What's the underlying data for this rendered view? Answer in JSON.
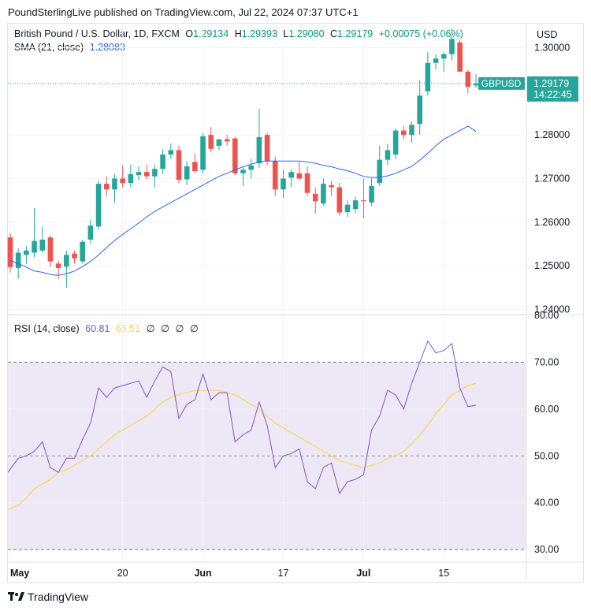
{
  "header": {
    "title": "PoundSterlingLive published on TradingView.com, Jul 22, 2024 07:37 UTC+1"
  },
  "legend": {
    "instrument": "British Pound / U.S. Dollar, 1D, FXCM",
    "o_label": "O",
    "o_val": "1.29134",
    "h_label": "H",
    "h_val": "1.29393",
    "l_label": "L",
    "l_val": "1.29080",
    "c_label": "C",
    "c_val": "1.29179",
    "change": "+0.00075 (+0.06%)",
    "sma_label": "SMA (21, close)",
    "sma_val": "1.28083",
    "rsi_label": "RSI (14, close)",
    "rsi_val": "60.81",
    "rsi_ma_val": "65.51",
    "na_symbols": [
      "∅",
      "∅",
      "∅",
      "∅"
    ]
  },
  "currency_button": "USD",
  "price_tag": {
    "symbol": "GBPUSD",
    "price": "1.29179",
    "countdown": "14:22:45"
  },
  "footer": {
    "brand": "TradingView"
  },
  "colors": {
    "up": "#26a69a",
    "down": "#ef5350",
    "sma": "#2962ff",
    "rsi": "#7e57c2",
    "rsi_ma": "#fdd835",
    "rsi_band": "#ede7f6"
  },
  "chart_data": [
    {
      "type": "candlestick",
      "title": "British Pound / U.S. Dollar, 1D, FXCM",
      "ylim": [
        1.239,
        1.3055
      ],
      "yticks": [
        1.24,
        1.25,
        1.26,
        1.27,
        1.28,
        1.3
      ],
      "ytick_labels": [
        "1.24000",
        "1.25000",
        "1.26000",
        "1.27000",
        "1.28000",
        "1.30000"
      ],
      "x_labels": [
        {
          "i": 0,
          "label": "May"
        },
        {
          "i": 14,
          "label": "20"
        },
        {
          "i": 24,
          "label": "Jun"
        },
        {
          "i": 34,
          "label": "17"
        },
        {
          "i": 44,
          "label": "Jul"
        },
        {
          "i": 54,
          "label": "15"
        }
      ],
      "candles": [
        {
          "o": 1.2565,
          "h": 1.2575,
          "l": 1.2485,
          "c": 1.2497
        },
        {
          "o": 1.2495,
          "h": 1.254,
          "l": 1.247,
          "c": 1.253
        },
        {
          "o": 1.2525,
          "h": 1.2545,
          "l": 1.2505,
          "c": 1.2535
        },
        {
          "o": 1.253,
          "h": 1.2632,
          "l": 1.252,
          "c": 1.2557
        },
        {
          "o": 1.2535,
          "h": 1.259,
          "l": 1.253,
          "c": 1.256
        },
        {
          "o": 1.2565,
          "h": 1.257,
          "l": 1.2498,
          "c": 1.251
        },
        {
          "o": 1.2505,
          "h": 1.2512,
          "l": 1.247,
          "c": 1.2495
        },
        {
          "o": 1.2498,
          "h": 1.2535,
          "l": 1.245,
          "c": 1.2525
        },
        {
          "o": 1.2528,
          "h": 1.2535,
          "l": 1.2505,
          "c": 1.2517
        },
        {
          "o": 1.251,
          "h": 1.256,
          "l": 1.2505,
          "c": 1.2555
        },
        {
          "o": 1.256,
          "h": 1.2605,
          "l": 1.255,
          "c": 1.2592
        },
        {
          "o": 1.259,
          "h": 1.2695,
          "l": 1.2583,
          "c": 1.2688
        },
        {
          "o": 1.2688,
          "h": 1.2705,
          "l": 1.266,
          "c": 1.2675
        },
        {
          "o": 1.2675,
          "h": 1.271,
          "l": 1.2645,
          "c": 1.27
        },
        {
          "o": 1.27,
          "h": 1.273,
          "l": 1.268,
          "c": 1.269
        },
        {
          "o": 1.269,
          "h": 1.2732,
          "l": 1.268,
          "c": 1.271
        },
        {
          "o": 1.2708,
          "h": 1.2728,
          "l": 1.2695,
          "c": 1.2715
        },
        {
          "o": 1.2715,
          "h": 1.2732,
          "l": 1.2698,
          "c": 1.2705
        },
        {
          "o": 1.2705,
          "h": 1.2732,
          "l": 1.268,
          "c": 1.2722
        },
        {
          "o": 1.2722,
          "h": 1.2768,
          "l": 1.271,
          "c": 1.2755
        },
        {
          "o": 1.2755,
          "h": 1.278,
          "l": 1.2745,
          "c": 1.2765
        },
        {
          "o": 1.2765,
          "h": 1.2775,
          "l": 1.269,
          "c": 1.2697
        },
        {
          "o": 1.2698,
          "h": 1.274,
          "l": 1.2685,
          "c": 1.2728
        },
        {
          "o": 1.2738,
          "h": 1.2758,
          "l": 1.2712,
          "c": 1.2717
        },
        {
          "o": 1.272,
          "h": 1.2805,
          "l": 1.2712,
          "c": 1.2797
        },
        {
          "o": 1.28,
          "h": 1.2818,
          "l": 1.276,
          "c": 1.2768
        },
        {
          "o": 1.2775,
          "h": 1.279,
          "l": 1.2765,
          "c": 1.279
        },
        {
          "o": 1.279,
          "h": 1.28,
          "l": 1.2775,
          "c": 1.2785
        },
        {
          "o": 1.2792,
          "h": 1.2795,
          "l": 1.2708,
          "c": 1.2712
        },
        {
          "o": 1.2712,
          "h": 1.2725,
          "l": 1.2683,
          "c": 1.272
        },
        {
          "o": 1.272,
          "h": 1.2745,
          "l": 1.27,
          "c": 1.273
        },
        {
          "o": 1.2735,
          "h": 1.286,
          "l": 1.2725,
          "c": 1.2795
        },
        {
          "o": 1.28,
          "h": 1.2805,
          "l": 1.273,
          "c": 1.274
        },
        {
          "o": 1.274,
          "h": 1.275,
          "l": 1.266,
          "c": 1.2675
        },
        {
          "o": 1.2675,
          "h": 1.272,
          "l": 1.2655,
          "c": 1.27
        },
        {
          "o": 1.2702,
          "h": 1.2722,
          "l": 1.268,
          "c": 1.2715
        },
        {
          "o": 1.2712,
          "h": 1.2738,
          "l": 1.2695,
          "c": 1.27
        },
        {
          "o": 1.2712,
          "h": 1.2728,
          "l": 1.266,
          "c": 1.2667
        },
        {
          "o": 1.2665,
          "h": 1.268,
          "l": 1.262,
          "c": 1.2648
        },
        {
          "o": 1.2643,
          "h": 1.27,
          "l": 1.2638,
          "c": 1.2688
        },
        {
          "o": 1.2685,
          "h": 1.2695,
          "l": 1.266,
          "c": 1.268
        },
        {
          "o": 1.268,
          "h": 1.269,
          "l": 1.2615,
          "c": 1.2622
        },
        {
          "o": 1.2623,
          "h": 1.265,
          "l": 1.2612,
          "c": 1.264
        },
        {
          "o": 1.263,
          "h": 1.2658,
          "l": 1.262,
          "c": 1.265
        },
        {
          "o": 1.265,
          "h": 1.27,
          "l": 1.261,
          "c": 1.2648
        },
        {
          "o": 1.2645,
          "h": 1.27,
          "l": 1.2637,
          "c": 1.2683
        },
        {
          "o": 1.269,
          "h": 1.2775,
          "l": 1.2683,
          "c": 1.2743
        },
        {
          "o": 1.2743,
          "h": 1.278,
          "l": 1.273,
          "c": 1.2765
        },
        {
          "o": 1.2755,
          "h": 1.2815,
          "l": 1.2745,
          "c": 1.281
        },
        {
          "o": 1.281,
          "h": 1.282,
          "l": 1.279,
          "c": 1.28
        },
        {
          "o": 1.28,
          "h": 1.283,
          "l": 1.2782,
          "c": 1.2823
        },
        {
          "o": 1.2825,
          "h": 1.2925,
          "l": 1.28,
          "c": 1.289
        },
        {
          "o": 1.29,
          "h": 1.299,
          "l": 1.289,
          "c": 1.2965
        },
        {
          "o": 1.2965,
          "h": 1.2985,
          "l": 1.295,
          "c": 1.2975
        },
        {
          "o": 1.2975,
          "h": 1.299,
          "l": 1.2945,
          "c": 1.2985
        },
        {
          "o": 1.2985,
          "h": 1.3045,
          "l": 1.297,
          "c": 1.302
        },
        {
          "o": 1.3012,
          "h": 1.3018,
          "l": 1.295,
          "c": 1.2945
        },
        {
          "o": 1.2945,
          "h": 1.295,
          "l": 1.2895,
          "c": 1.291
        },
        {
          "o": 1.29134,
          "h": 1.29393,
          "l": 1.2908,
          "c": 1.29179
        }
      ],
      "sma": [
        1.2512,
        1.2505,
        1.2497,
        1.2488,
        1.2485,
        1.248,
        1.2478,
        1.2482,
        1.2488,
        1.2498,
        1.251,
        1.2525,
        1.2542,
        1.2558,
        1.2572,
        1.2585,
        1.2598,
        1.2612,
        1.2625,
        1.2635,
        1.2645,
        1.2655,
        1.2665,
        1.2675,
        1.2685,
        1.2695,
        1.2705,
        1.2712,
        1.272,
        1.2727,
        1.2733,
        1.2738,
        1.274,
        1.274,
        1.274,
        1.274,
        1.274,
        1.2738,
        1.2735,
        1.273,
        1.2727,
        1.2722,
        1.2718,
        1.2712,
        1.2705,
        1.2702,
        1.2703,
        1.2706,
        1.2712,
        1.272,
        1.2728,
        1.2742,
        1.2758,
        1.2775,
        1.279,
        1.28,
        1.281,
        1.282,
        1.2808
      ]
    },
    {
      "type": "line",
      "title": "RSI (14, close)",
      "ylim": [
        27.5,
        80
      ],
      "yticks": [
        30,
        40,
        50,
        60,
        70,
        80
      ],
      "ytick_labels": [
        "30.00",
        "40.00",
        "50.00",
        "60.00",
        "70.00",
        "80.00"
      ],
      "overbought": 70,
      "oversold": 30,
      "series": [
        {
          "name": "RSI",
          "values": [
            46.5,
            49.5,
            50.0,
            51.0,
            53.0,
            47.5,
            46.5,
            49.5,
            49.5,
            53.5,
            57.0,
            64.5,
            62.5,
            64.5,
            65.0,
            65.5,
            66.0,
            62.5,
            66.0,
            69.0,
            68.0,
            58.0,
            61.0,
            62.0,
            67.5,
            62.0,
            63.5,
            63.5,
            53.0,
            54.5,
            55.5,
            61.5,
            56.5,
            47.5,
            50.0,
            50.5,
            51.5,
            44.5,
            43.0,
            47.5,
            48.5,
            42.0,
            44.5,
            45.0,
            46.0,
            55.5,
            58.5,
            64.0,
            63.0,
            60.0,
            65.5,
            70.0,
            74.5,
            72.0,
            72.5,
            74.0,
            64.5,
            60.5,
            60.81
          ]
        },
        {
          "name": "RSI-based MA",
          "values": [
            38.5,
            39.5,
            41.0,
            43.0,
            44.0,
            45.0,
            46.5,
            47.0,
            48.0,
            49.0,
            50.0,
            51.5,
            53.0,
            54.5,
            55.5,
            56.5,
            57.5,
            58.5,
            60.0,
            61.5,
            62.5,
            63.0,
            63.5,
            64.0,
            64.0,
            64.0,
            64.0,
            63.5,
            63.0,
            62.0,
            61.0,
            60.0,
            58.5,
            57.0,
            56.0,
            55.0,
            54.0,
            53.0,
            52.0,
            51.0,
            50.0,
            49.0,
            48.5,
            48.0,
            47.5,
            48.0,
            48.5,
            49.5,
            50.0,
            51.0,
            52.5,
            54.5,
            56.5,
            59.0,
            61.0,
            63.0,
            64.0,
            65.0,
            65.51
          ]
        }
      ]
    }
  ]
}
